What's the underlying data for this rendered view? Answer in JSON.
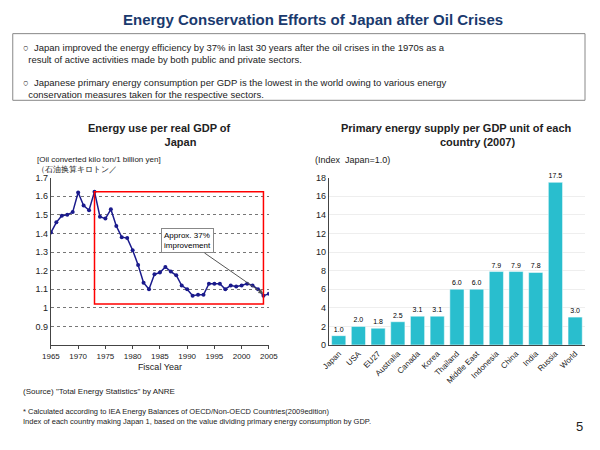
{
  "title": "Energy Conservation Efforts of Japan after Oil Crises",
  "annotations": [
    "○  Japan improved the energy efficiency by 37% in last 30 years after the oil crises in the 1970s as a\n  result of active activities made by both public and private sectors.",
    "○  Japanese primary energy consumption per GDP is the lowest in the world owing to various energy\n  conservation measures taken for the respective sectors."
  ],
  "footnote": "* Calculated according to IEA Energy Balances of OECD/Non-OECD Countries(2009edition)\nIndex of each country making Japan 1, based on the value dividing primary energy consumption by GDP.",
  "page_number": "5",
  "chart_data": [
    {
      "type": "line",
      "title": "Energy use per real GDP of\n              Japan",
      "ylabel": "[Oil converted kilo ton/1 billion yen]\n（石油换算キロトン／",
      "xlabel": "Fiscal Year",
      "source": "(Source) \"Total Energy Statistics\" by ANRE",
      "x": [
        1965,
        1966,
        1967,
        1968,
        1969,
        1970,
        1971,
        1972,
        1973,
        1974,
        1975,
        1976,
        1977,
        1978,
        1979,
        1980,
        1981,
        1982,
        1983,
        1984,
        1985,
        1986,
        1987,
        1988,
        1989,
        1990,
        1991,
        1992,
        1993,
        1994,
        1995,
        1996,
        1997,
        1998,
        1999,
        2000,
        2001,
        2002,
        2003,
        2004,
        2005
      ],
      "values": [
        1.405,
        1.46,
        1.495,
        1.5,
        1.515,
        1.62,
        1.55,
        1.525,
        1.625,
        1.49,
        1.48,
        1.53,
        1.44,
        1.38,
        1.375,
        1.31,
        1.23,
        1.135,
        1.1,
        1.18,
        1.19,
        1.22,
        1.195,
        1.175,
        1.12,
        1.1,
        1.065,
        1.07,
        1.07,
        1.13,
        1.13,
        1.13,
        1.1,
        1.12,
        1.115,
        1.12,
        1.13,
        1.12,
        1.1,
        1.065,
        1.075
      ],
      "color": "#1A1A8C",
      "marker": "circle",
      "xlim": [
        1965,
        2005
      ],
      "xticks": [
        1965,
        1970,
        1975,
        1980,
        1985,
        1990,
        1995,
        2000,
        2005
      ],
      "ylim": [
        0.8,
        1.7
      ],
      "yticks": [
        0.9,
        1,
        1.1,
        1.2,
        1.3,
        1.4,
        1.5,
        1.6,
        1.7
      ],
      "grid": true,
      "highlight": {
        "x": [
          1973,
          2004
        ],
        "y": [
          1.02,
          1.625
        ],
        "color": "red"
      },
      "annotations": [
        {
          "text": "Approx. 37%\nimprovement",
          "x": 1990,
          "y": 1.36,
          "arrow_x": 2004,
          "arrow_y": 1.075
        }
      ]
    },
    {
      "type": "bar",
      "title": "Primary energy supply per GDP unit of each\n              country (2007)",
      "ylabel": "(Index  Japan=1.0)",
      "categories": [
        "Japan",
        "USA",
        "EU27",
        "Australia",
        "Canada",
        "Korea",
        "Thailand",
        "Middle East",
        "Indonesia",
        "China",
        "India",
        "Russia",
        "World"
      ],
      "values": [
        1.0,
        2.0,
        1.8,
        2.5,
        3.1,
        3.1,
        6.0,
        6.0,
        7.9,
        7.9,
        7.8,
        17.5,
        3.0
      ],
      "value_labels": [
        "1.0",
        "2.0",
        "1.8",
        "2.5",
        "3.1",
        "3.1",
        "6.0",
        "6.0",
        "7.9",
        "7.9",
        "7.8",
        "17.5",
        "3.0"
      ],
      "data_labels": true,
      "color": "#29BECE",
      "ylim": [
        0,
        18
      ],
      "yticks": [
        0,
        2,
        4,
        6,
        8,
        10,
        12,
        14,
        16,
        18
      ],
      "grid": true
    }
  ]
}
